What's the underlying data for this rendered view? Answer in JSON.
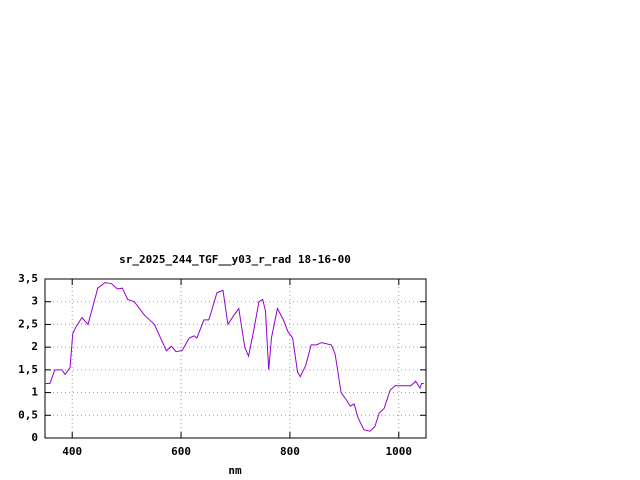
{
  "chart_data": {
    "type": "line",
    "title": "sr_2025_244_TGF__y03_r_rad 18-16-00",
    "x_label": "nm",
    "x": [
      350,
      359,
      368,
      381,
      387,
      396,
      401,
      407,
      418,
      429,
      438,
      447,
      460,
      472,
      483,
      492,
      502,
      514,
      533,
      551,
      573,
      582,
      591,
      602,
      615,
      624,
      629,
      642,
      651,
      666,
      677,
      686,
      697,
      706,
      717,
      724,
      734,
      743,
      750,
      755,
      761,
      766,
      777,
      788,
      796,
      805,
      814,
      819,
      829,
      839,
      849,
      858,
      876,
      883,
      894,
      903,
      911,
      918,
      925,
      936,
      947,
      956,
      964,
      973,
      984,
      993,
      1011,
      1022,
      1031,
      1039,
      1042,
      1046
    ],
    "series": [
      {
        "color": "#9400d3",
        "values": [
          1.2,
          1.2,
          1.5,
          1.5,
          1.4,
          1.55,
          2.3,
          2.45,
          2.65,
          2.5,
          2.9,
          3.3,
          3.42,
          3.4,
          3.28,
          3.3,
          3.05,
          3.0,
          2.7,
          2.5,
          1.92,
          2.02,
          1.9,
          1.93,
          2.2,
          2.25,
          2.2,
          2.6,
          2.6,
          3.2,
          3.25,
          2.5,
          2.7,
          2.85,
          2.0,
          1.8,
          2.4,
          3.0,
          3.05,
          2.8,
          1.5,
          2.2,
          2.85,
          2.6,
          2.35,
          2.2,
          1.45,
          1.35,
          1.6,
          2.05,
          2.05,
          2.1,
          2.05,
          1.85,
          1.0,
          0.85,
          0.7,
          0.75,
          0.45,
          0.18,
          0.15,
          0.25,
          0.55,
          0.65,
          1.05,
          1.15,
          1.15,
          1.15,
          1.25,
          1.1,
          1.2,
          1.2
        ]
      }
    ],
    "xlim": [
      350,
      1050
    ],
    "xticks": [
      400,
      600,
      800,
      1000
    ],
    "ylim": [
      0,
      3.5
    ],
    "yticks": [
      0,
      {
        "value": 0.5,
        "label": "0,5"
      },
      1,
      {
        "value": 1.5,
        "label": "1,5"
      },
      2,
      {
        "value": 2.5,
        "label": "2,5"
      },
      3,
      {
        "value": 3.5,
        "label": "3,5"
      }
    ],
    "grid": true
  }
}
